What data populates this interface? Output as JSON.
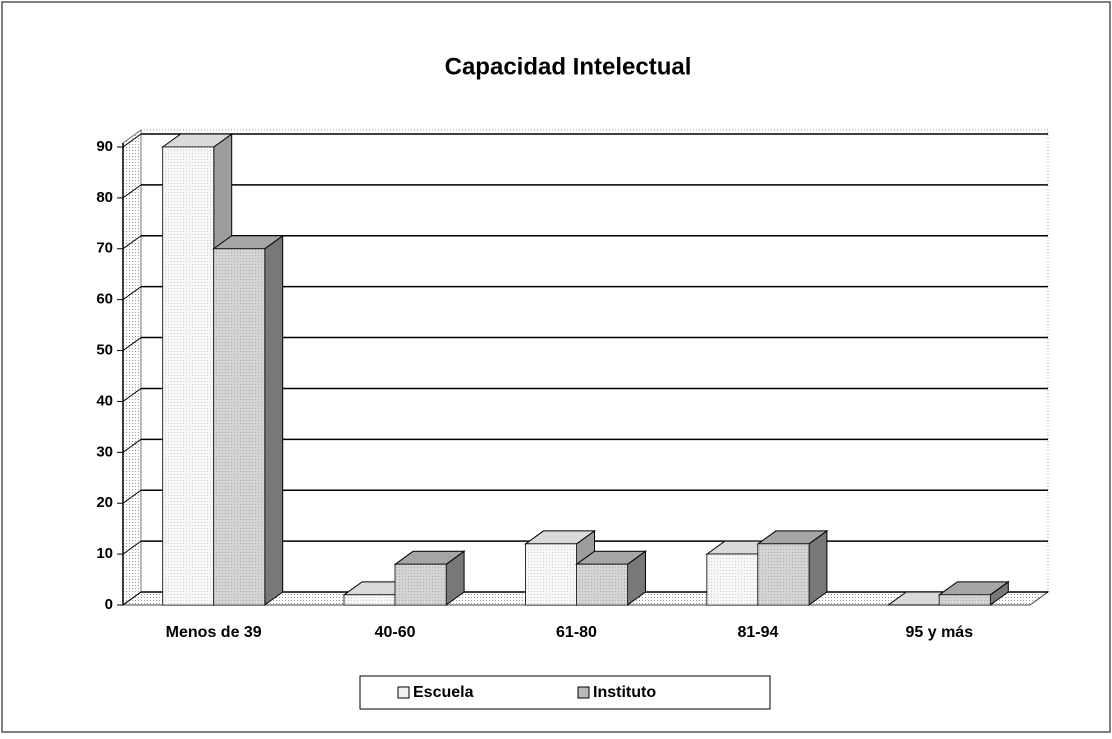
{
  "chart_data": {
    "type": "bar3d",
    "title": "Capacidad Intelectual",
    "categories": [
      "Menos de 39",
      "40-60",
      "61-80",
      "81-94",
      "95 y más"
    ],
    "series": [
      {
        "name": "Escuela",
        "color": "#f2f2f2",
        "values": [
          90,
          2,
          12,
          10,
          0
        ]
      },
      {
        "name": "Instituto",
        "color": "#b8b8b8",
        "values": [
          70,
          8,
          8,
          12,
          2
        ]
      }
    ],
    "ylim": [
      0,
      90
    ],
    "yticks": [
      0,
      10,
      20,
      30,
      40,
      50,
      60,
      70,
      80,
      90
    ],
    "grid": true,
    "legend": "bottom"
  }
}
